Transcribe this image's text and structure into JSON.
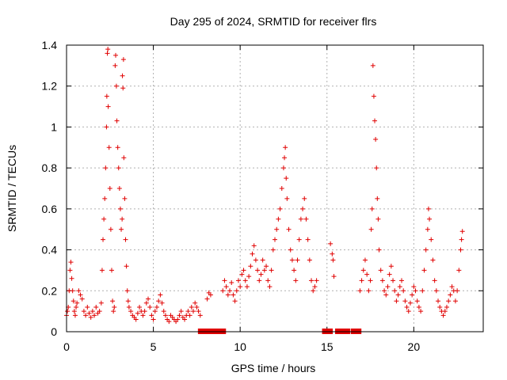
{
  "chart_data": {
    "type": "scatter",
    "title": "Day 295 of 2024, SRMTID for receiver flrs",
    "xlabel": "GPS time / hours",
    "ylabel": "SRMTID / TECUs",
    "xlim": [
      0,
      24
    ],
    "ylim": [
      0,
      1.4
    ],
    "xticks": [
      0,
      5,
      10,
      15,
      20
    ],
    "xtick_labels": [
      "0",
      "5",
      "10",
      "15",
      "20"
    ],
    "yticks": [
      0,
      0.2,
      0.4,
      0.6,
      0.8,
      1.0,
      1.2,
      1.4
    ],
    "ytick_labels": [
      "0",
      "0.2",
      "0.4",
      "0.6",
      "0.8",
      "1",
      "1.2",
      "1.4"
    ],
    "grid": true,
    "marker": "plus",
    "color": "#e00000",
    "series": [
      {
        "name": "SRMTID",
        "points": [
          [
            0.0,
            0.08
          ],
          [
            0.05,
            0.1
          ],
          [
            0.1,
            0.12
          ],
          [
            0.15,
            0.2
          ],
          [
            0.2,
            0.3
          ],
          [
            0.25,
            0.34
          ],
          [
            0.3,
            0.26
          ],
          [
            0.35,
            0.2
          ],
          [
            0.4,
            0.15
          ],
          [
            0.45,
            0.1
          ],
          [
            0.5,
            0.08
          ],
          [
            0.55,
            0.12
          ],
          [
            0.6,
            0.14
          ],
          [
            0.7,
            0.2
          ],
          [
            0.8,
            0.18
          ],
          [
            0.9,
            0.16
          ],
          [
            1.0,
            0.1
          ],
          [
            1.1,
            0.08
          ],
          [
            1.2,
            0.12
          ],
          [
            1.3,
            0.09
          ],
          [
            1.4,
            0.07
          ],
          [
            1.5,
            0.1
          ],
          [
            1.6,
            0.08
          ],
          [
            1.7,
            0.12
          ],
          [
            1.8,
            0.09
          ],
          [
            1.9,
            0.1
          ],
          [
            2.0,
            0.14
          ],
          [
            2.05,
            0.3
          ],
          [
            2.1,
            0.45
          ],
          [
            2.15,
            0.55
          ],
          [
            2.2,
            0.65
          ],
          [
            2.25,
            0.8
          ],
          [
            2.3,
            1.0
          ],
          [
            2.32,
            1.15
          ],
          [
            2.35,
            1.36
          ],
          [
            2.38,
            1.38
          ],
          [
            2.4,
            1.1
          ],
          [
            2.45,
            0.9
          ],
          [
            2.5,
            0.7
          ],
          [
            2.55,
            0.5
          ],
          [
            2.6,
            0.3
          ],
          [
            2.65,
            0.15
          ],
          [
            2.7,
            0.1
          ],
          [
            2.75,
            0.12
          ],
          [
            2.8,
            1.3
          ],
          [
            2.83,
            1.35
          ],
          [
            2.87,
            1.2
          ],
          [
            2.9,
            1.03
          ],
          [
            2.95,
            0.9
          ],
          [
            3.0,
            0.8
          ],
          [
            3.05,
            0.7
          ],
          [
            3.1,
            0.6
          ],
          [
            3.15,
            0.5
          ],
          [
            3.2,
            0.55
          ],
          [
            3.22,
            1.25
          ],
          [
            3.25,
            1.19
          ],
          [
            3.28,
            1.33
          ],
          [
            3.3,
            0.85
          ],
          [
            3.35,
            0.65
          ],
          [
            3.4,
            0.45
          ],
          [
            3.45,
            0.32
          ],
          [
            3.5,
            0.2
          ],
          [
            3.55,
            0.15
          ],
          [
            3.6,
            0.12
          ],
          [
            3.7,
            0.1
          ],
          [
            3.8,
            0.08
          ],
          [
            3.9,
            0.07
          ],
          [
            4.0,
            0.06
          ],
          [
            4.1,
            0.09
          ],
          [
            4.2,
            0.12
          ],
          [
            4.3,
            0.1
          ],
          [
            4.4,
            0.08
          ],
          [
            4.5,
            0.1
          ],
          [
            4.6,
            0.14
          ],
          [
            4.7,
            0.16
          ],
          [
            4.8,
            0.12
          ],
          [
            4.9,
            0.08
          ],
          [
            5.0,
            0.06
          ],
          [
            5.1,
            0.1
          ],
          [
            5.2,
            0.12
          ],
          [
            5.3,
            0.15
          ],
          [
            5.4,
            0.18
          ],
          [
            5.5,
            0.14
          ],
          [
            5.6,
            0.1
          ],
          [
            5.7,
            0.08
          ],
          [
            5.8,
            0.06
          ],
          [
            5.9,
            0.05
          ],
          [
            6.0,
            0.08
          ],
          [
            6.1,
            0.07
          ],
          [
            6.2,
            0.06
          ],
          [
            6.3,
            0.05
          ],
          [
            6.4,
            0.06
          ],
          [
            6.5,
            0.08
          ],
          [
            6.6,
            0.1
          ],
          [
            6.7,
            0.07
          ],
          [
            6.8,
            0.06
          ],
          [
            6.9,
            0.08
          ],
          [
            7.0,
            0.1
          ],
          [
            7.1,
            0.08
          ],
          [
            7.2,
            0.12
          ],
          [
            7.3,
            0.1
          ],
          [
            7.4,
            0.14
          ],
          [
            7.5,
            0.12
          ],
          [
            7.6,
            0.1
          ],
          [
            7.7,
            0.08
          ],
          [
            8.1,
            0.16
          ],
          [
            8.2,
            0.19
          ],
          [
            8.3,
            0.18
          ],
          [
            9.0,
            0.2
          ],
          [
            9.1,
            0.25
          ],
          [
            9.2,
            0.22
          ],
          [
            9.3,
            0.18
          ],
          [
            9.4,
            0.2
          ],
          [
            9.5,
            0.24
          ],
          [
            9.6,
            0.18
          ],
          [
            9.7,
            0.15
          ],
          [
            9.8,
            0.2
          ],
          [
            9.9,
            0.25
          ],
          [
            10.0,
            0.22
          ],
          [
            10.1,
            0.28
          ],
          [
            10.2,
            0.3
          ],
          [
            10.3,
            0.25
          ],
          [
            10.4,
            0.22
          ],
          [
            10.5,
            0.27
          ],
          [
            10.6,
            0.32
          ],
          [
            10.7,
            0.38
          ],
          [
            10.8,
            0.42
          ],
          [
            10.9,
            0.35
          ],
          [
            11.0,
            0.3
          ],
          [
            11.1,
            0.25
          ],
          [
            11.2,
            0.28
          ],
          [
            11.3,
            0.35
          ],
          [
            11.4,
            0.3
          ],
          [
            11.5,
            0.32
          ],
          [
            11.6,
            0.25
          ],
          [
            11.7,
            0.22
          ],
          [
            11.8,
            0.3
          ],
          [
            11.9,
            0.4
          ],
          [
            12.0,
            0.45
          ],
          [
            12.1,
            0.5
          ],
          [
            12.2,
            0.55
          ],
          [
            12.3,
            0.6
          ],
          [
            12.4,
            0.7
          ],
          [
            12.5,
            0.8
          ],
          [
            12.55,
            0.85
          ],
          [
            12.6,
            0.9
          ],
          [
            12.65,
            0.75
          ],
          [
            12.7,
            0.65
          ],
          [
            12.8,
            0.5
          ],
          [
            12.9,
            0.4
          ],
          [
            13.0,
            0.35
          ],
          [
            13.1,
            0.3
          ],
          [
            13.2,
            0.25
          ],
          [
            13.3,
            0.35
          ],
          [
            13.4,
            0.45
          ],
          [
            13.5,
            0.55
          ],
          [
            13.6,
            0.6
          ],
          [
            13.7,
            0.65
          ],
          [
            13.8,
            0.55
          ],
          [
            13.9,
            0.45
          ],
          [
            14.0,
            0.35
          ],
          [
            14.1,
            0.25
          ],
          [
            14.2,
            0.2
          ],
          [
            14.3,
            0.22
          ],
          [
            14.4,
            0.25
          ],
          [
            15.2,
            0.43
          ],
          [
            15.3,
            0.38
          ],
          [
            15.35,
            0.35
          ],
          [
            15.4,
            0.27
          ],
          [
            16.9,
            0.2
          ],
          [
            17.0,
            0.25
          ],
          [
            17.1,
            0.3
          ],
          [
            17.2,
            0.35
          ],
          [
            17.3,
            0.28
          ],
          [
            17.4,
            0.2
          ],
          [
            17.5,
            0.25
          ],
          [
            17.55,
            0.5
          ],
          [
            17.6,
            0.6
          ],
          [
            17.65,
            1.3
          ],
          [
            17.7,
            1.15
          ],
          [
            17.75,
            1.03
          ],
          [
            17.8,
            0.94
          ],
          [
            17.85,
            0.8
          ],
          [
            17.9,
            0.65
          ],
          [
            17.95,
            0.55
          ],
          [
            18.0,
            0.4
          ],
          [
            18.1,
            0.3
          ],
          [
            18.2,
            0.25
          ],
          [
            18.3,
            0.2
          ],
          [
            18.4,
            0.18
          ],
          [
            18.5,
            0.22
          ],
          [
            18.6,
            0.28
          ],
          [
            18.7,
            0.32
          ],
          [
            18.8,
            0.25
          ],
          [
            18.9,
            0.2
          ],
          [
            19.0,
            0.15
          ],
          [
            19.1,
            0.18
          ],
          [
            19.2,
            0.22
          ],
          [
            19.3,
            0.25
          ],
          [
            19.4,
            0.2
          ],
          [
            19.5,
            0.15
          ],
          [
            19.6,
            0.12
          ],
          [
            19.7,
            0.1
          ],
          [
            19.8,
            0.14
          ],
          [
            19.9,
            0.18
          ],
          [
            20.0,
            0.22
          ],
          [
            20.1,
            0.2
          ],
          [
            20.2,
            0.15
          ],
          [
            20.3,
            0.12
          ],
          [
            20.4,
            0.1
          ],
          [
            20.5,
            0.2
          ],
          [
            20.6,
            0.3
          ],
          [
            20.7,
            0.4
          ],
          [
            20.8,
            0.5
          ],
          [
            20.85,
            0.6
          ],
          [
            20.9,
            0.55
          ],
          [
            21.0,
            0.45
          ],
          [
            21.1,
            0.35
          ],
          [
            21.2,
            0.25
          ],
          [
            21.3,
            0.2
          ],
          [
            21.4,
            0.15
          ],
          [
            21.5,
            0.12
          ],
          [
            21.6,
            0.1
          ],
          [
            21.7,
            0.08
          ],
          [
            21.8,
            0.1
          ],
          [
            21.9,
            0.12
          ],
          [
            22.0,
            0.15
          ],
          [
            22.1,
            0.18
          ],
          [
            22.2,
            0.22
          ],
          [
            22.3,
            0.2
          ],
          [
            22.4,
            0.15
          ],
          [
            22.5,
            0.2
          ],
          [
            22.6,
            0.3
          ],
          [
            22.7,
            0.4
          ],
          [
            22.75,
            0.45
          ],
          [
            22.8,
            0.49
          ]
        ]
      }
    ],
    "gap_markers_hours": [
      7.75,
      8.0,
      8.25,
      8.5,
      8.75,
      9.0,
      14.9,
      15.15,
      15.65,
      15.9,
      16.15,
      16.55,
      16.8
    ]
  }
}
